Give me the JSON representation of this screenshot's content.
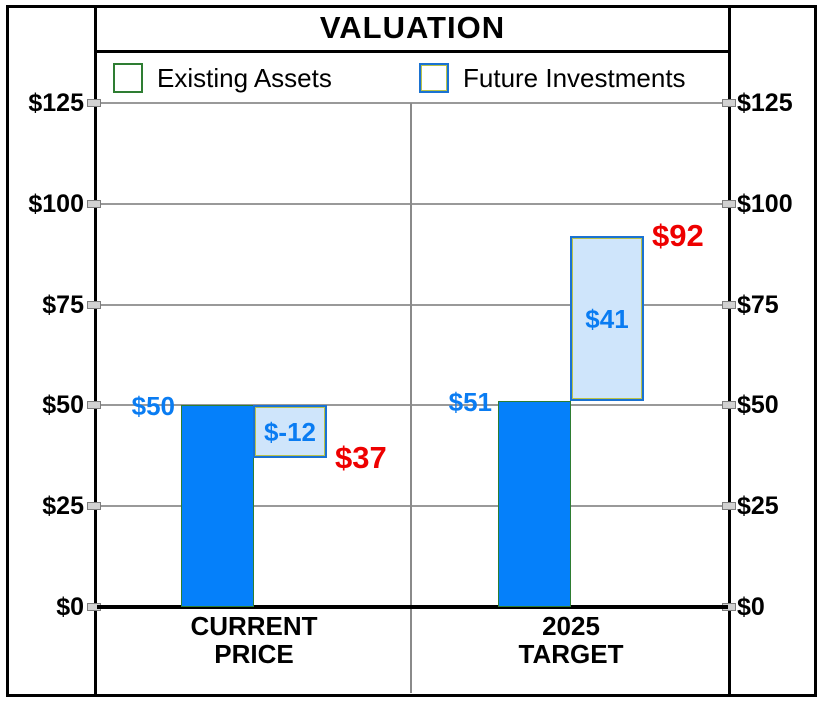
{
  "title": "VALUATION",
  "legend": [
    {
      "name": "Existing Assets",
      "swatch": "existing-assets-swatch"
    },
    {
      "name": "Future Investments",
      "swatch": "future-investments-swatch"
    }
  ],
  "colors": {
    "existing_fill": "#0580fa",
    "existing_border": "#2e7d32",
    "future_fill": "#cfe5fb",
    "future_border": "#1a72d2",
    "future_inner_line": "#b9c24a",
    "value_label_blue": "#0a7cf2",
    "total_label_red": "#ee0000",
    "gridline_gray": "#999999",
    "frame_black": "#000000"
  },
  "axis": {
    "tick_labels": [
      "$125",
      "$100",
      "$75",
      "$50",
      "$25",
      "$0"
    ],
    "tick_values": [
      125,
      100,
      75,
      50,
      25,
      0
    ],
    "min": 0,
    "max": 125,
    "dual_sided": true
  },
  "chart_data": {
    "type": "bar",
    "subtype": "waterfall",
    "title": "VALUATION",
    "categories": [
      "CURRENT PRICE",
      "2025 TARGET"
    ],
    "series": [
      {
        "name": "Existing Assets",
        "values": [
          50,
          51
        ]
      },
      {
        "name": "Future Investments",
        "values": [
          -12,
          41
        ]
      }
    ],
    "totals": [
      37,
      92
    ],
    "xlabel": "",
    "ylabel": "",
    "ylim": [
      0,
      137
    ],
    "grid": true,
    "legend_position": "top"
  },
  "groups": [
    {
      "label_lines": [
        "CURRENT",
        "PRICE"
      ],
      "existing": {
        "from": 0,
        "to": 50,
        "label": "$50"
      },
      "future": {
        "from": 50,
        "to": 37,
        "label": "$-12"
      },
      "total_label": "$37"
    },
    {
      "label_lines": [
        "2025",
        "TARGET"
      ],
      "existing": {
        "from": 0,
        "to": 51,
        "label": "$51"
      },
      "future": {
        "from": 51,
        "to": 92,
        "label": "$41"
      },
      "total_label": "$92"
    }
  ]
}
